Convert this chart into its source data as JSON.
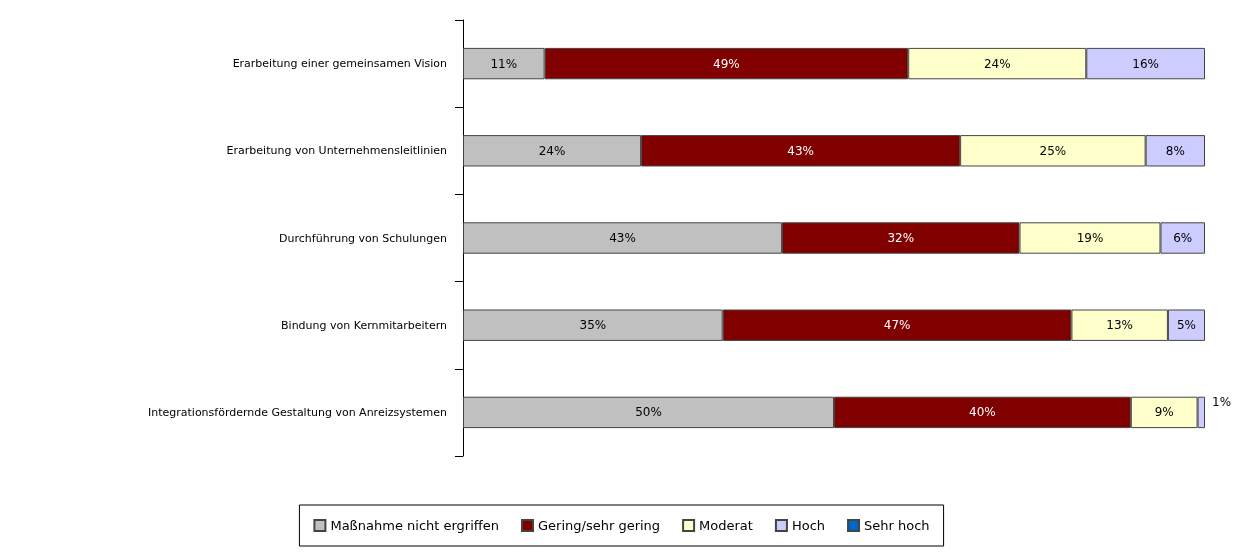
{
  "chart_data": {
    "type": "bar",
    "orientation": "horizontal",
    "stacked": true,
    "categories": [
      "Erarbeitung einer gemeinsamen Vision",
      "Erarbeitung von Unternehmensleitlinien",
      "Durchführung von Schulungen",
      "Bindung von Kernmitarbeitern",
      "Integrationsfördernde Gestaltung von Anreizsystemen"
    ],
    "series": [
      {
        "name": "Maßnahme nicht ergriffen",
        "color": "#c0c0c0",
        "values": [
          11,
          24,
          43,
          35,
          50
        ],
        "value_labels": [
          "11%",
          "24%",
          "43%",
          "35%",
          "50%"
        ]
      },
      {
        "name": "Gering/sehr gering",
        "color": "#800000",
        "values": [
          49,
          43,
          32,
          47,
          40
        ],
        "value_labels": [
          "49%",
          "43%",
          "32%",
          "47%",
          "40%"
        ]
      },
      {
        "name": "Moderat",
        "color": "#ffffcc",
        "values": [
          24,
          25,
          19,
          13,
          9
        ],
        "value_labels": [
          "24%",
          "25%",
          "19%",
          "13%",
          "9%"
        ]
      },
      {
        "name": "Hoch",
        "color": "#ccccff",
        "values": [
          16,
          8,
          6,
          5,
          1
        ],
        "value_labels": [
          "16%",
          "8%",
          "6%",
          "5%",
          "1%"
        ]
      },
      {
        "name": "Sehr hoch",
        "color": "#0066cc",
        "values": [
          null,
          null,
          null,
          null,
          null
        ],
        "value_labels": [
          null,
          null,
          null,
          null,
          null
        ]
      }
    ],
    "xlim": [
      0,
      100
    ],
    "tick_labels": "y",
    "legend": "bottom"
  }
}
